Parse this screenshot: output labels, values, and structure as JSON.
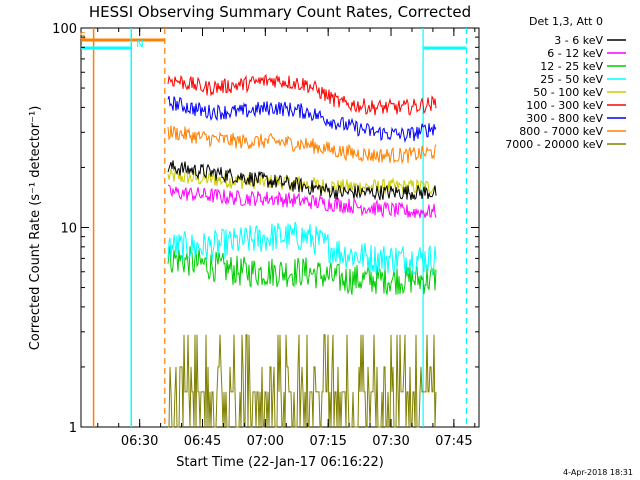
{
  "chart_data": {
    "type": "line",
    "title": "HESSI Observing Summary Count Rates, Corrected",
    "xlabel": "Start Time (22-Jan-17 06:16:22)",
    "ylabel": "Corrected Count Rate (s⁻¹ detector⁻¹)",
    "yscale": "log",
    "ylim": [
      1,
      100
    ],
    "y_ticks": [
      1,
      10,
      100
    ],
    "y_tick_labels": [
      "1",
      "10",
      "100"
    ],
    "xlim_minutes": [
      0,
      95
    ],
    "x_ticks": [
      {
        "t": 14,
        "label": "06:30"
      },
      {
        "t": 29,
        "label": "06:45"
      },
      {
        "t": 44,
        "label": "07:00"
      },
      {
        "t": 59,
        "label": "07:15"
      },
      {
        "t": 74,
        "label": "07:30"
      },
      {
        "t": 89,
        "label": "07:45"
      }
    ],
    "legend_title": "Det 1,3, Att 0",
    "legend_position": "right",
    "series": [
      {
        "name": "3 - 6 keV",
        "color": "#000000",
        "x": [
          22,
          30,
          38,
          46,
          54,
          62,
          70,
          78,
          85
        ],
        "y": [
          20,
          19,
          18,
          17,
          16,
          15,
          15,
          15,
          15
        ]
      },
      {
        "name": "6 - 12 keV",
        "color": "#ff00ff",
        "x": [
          22,
          30,
          38,
          46,
          54,
          62,
          70,
          78,
          85
        ],
        "y": [
          15,
          14.5,
          14,
          14,
          13.5,
          13,
          12.5,
          12,
          12
        ]
      },
      {
        "name": "12 - 25 keV",
        "color": "#00cc00",
        "x": [
          22,
          30,
          38,
          46,
          54,
          62,
          70,
          78,
          85
        ],
        "y": [
          7,
          6.5,
          6,
          6,
          6,
          5.5,
          5.5,
          5.5,
          5.5
        ]
      },
      {
        "name": "25 - 50 keV",
        "color": "#00ffff",
        "x": [
          22,
          30,
          38,
          46,
          54,
          62,
          70,
          78,
          85
        ],
        "y": [
          8,
          8,
          8.5,
          9,
          9,
          7.5,
          7,
          7,
          7
        ]
      },
      {
        "name": "50 - 100 keV",
        "color": "#cccc00",
        "x": [
          22,
          30,
          38,
          46,
          54,
          62,
          70,
          78,
          85
        ],
        "y": [
          18,
          17.5,
          17,
          17,
          16.5,
          16,
          16,
          16,
          16
        ]
      },
      {
        "name": "100 - 300 keV",
        "color": "#ff0000",
        "x": [
          22,
          30,
          38,
          46,
          54,
          62,
          70,
          78,
          85
        ],
        "y": [
          55,
          50,
          52,
          55,
          52,
          42,
          40,
          40,
          42
        ]
      },
      {
        "name": "300 - 800 keV",
        "color": "#0000ff",
        "x": [
          22,
          30,
          38,
          46,
          54,
          62,
          70,
          78,
          85
        ],
        "y": [
          42,
          38,
          38,
          40,
          38,
          33,
          30,
          29,
          32
        ]
      },
      {
        "name": "800 - 7000 keV",
        "color": "#ff8000",
        "x": [
          22,
          30,
          38,
          46,
          54,
          62,
          70,
          78,
          85
        ],
        "y": [
          30,
          28,
          27,
          27,
          26,
          24,
          23,
          23,
          24
        ]
      },
      {
        "name": "7000 - 20000 keV",
        "color": "#808000",
        "x": [
          22,
          30,
          38,
          46,
          54,
          62,
          70,
          78,
          85
        ],
        "y": [
          1.5,
          1.5,
          1.6,
          1.6,
          1.5,
          1.5,
          1.5,
          1.5,
          1.5
        ]
      }
    ],
    "event_markers": [
      {
        "label": "S",
        "color": "#ff8000",
        "t_start": 3,
        "t_end": 20
      },
      {
        "label": "N",
        "color": "#00ffff",
        "t_start": 12,
        "t_end": 92
      }
    ],
    "observation_window_minutes": [
      20,
      85
    ],
    "footer_date": "4-Apr-2018 18:31"
  }
}
